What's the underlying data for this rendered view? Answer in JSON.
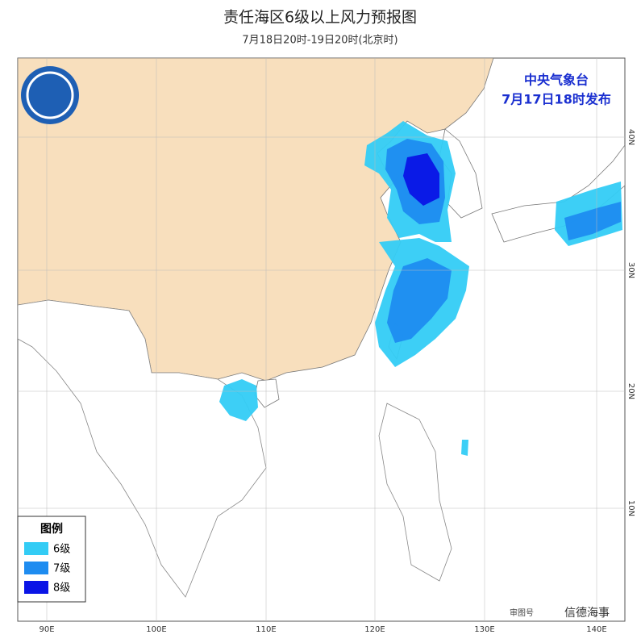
{
  "header": {
    "title": "责任海区6级以上风力预报图",
    "subtitle": "7月18日20时-19日20时(北京时)"
  },
  "issuer": {
    "agency": "中央气象台",
    "issued": "7月17日18时发布"
  },
  "legend": {
    "title": "图例",
    "items": [
      {
        "label": "6级",
        "color": "#33ccf5"
      },
      {
        "label": "7级",
        "color": "#1e8cf0"
      },
      {
        "label": "8级",
        "color": "#0a14e6"
      }
    ]
  },
  "axes": {
    "longitude": [
      "90E",
      "100E",
      "110E",
      "120E",
      "130E",
      "140E"
    ],
    "latitude": [
      "40N",
      "30N",
      "20N",
      "10N"
    ]
  },
  "footer": {
    "approval": "审图号",
    "watermark": "信德海事"
  }
}
